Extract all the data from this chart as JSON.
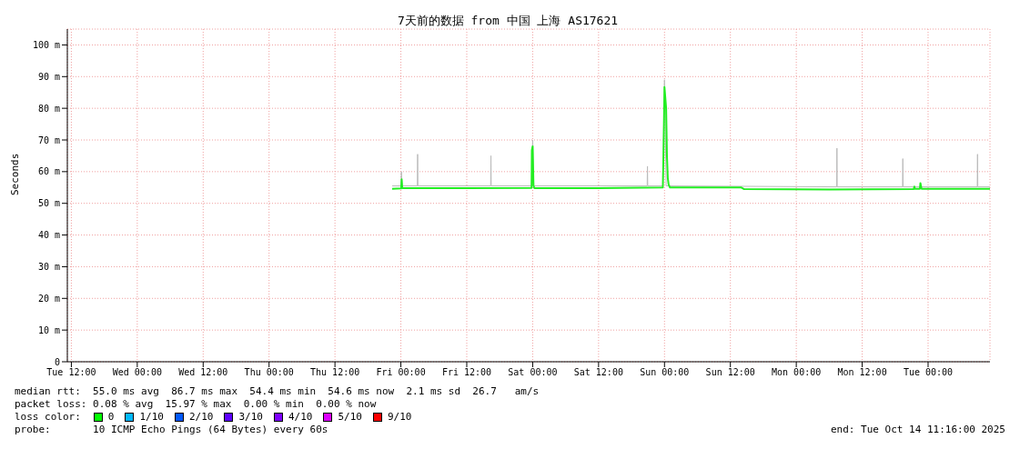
{
  "chart_data": {
    "type": "line",
    "title": "7天前的数据 from 中国 上海 AS17621",
    "ylabel": "Seconds",
    "xlim": [
      "2025-10-07T11:16",
      "2025-10-14T11:16"
    ],
    "xticks": [
      {
        "value": "2025-10-07T12:00",
        "label": "Tue 12:00"
      },
      {
        "value": "2025-10-08T00:00",
        "label": "Wed 00:00"
      },
      {
        "value": "2025-10-08T12:00",
        "label": "Wed 12:00"
      },
      {
        "value": "2025-10-09T00:00",
        "label": "Thu 00:00"
      },
      {
        "value": "2025-10-09T12:00",
        "label": "Thu 12:00"
      },
      {
        "value": "2025-10-10T00:00",
        "label": "Fri 00:00"
      },
      {
        "value": "2025-10-10T12:00",
        "label": "Fri 12:00"
      },
      {
        "value": "2025-10-11T00:00",
        "label": "Sat 00:00"
      },
      {
        "value": "2025-10-11T12:00",
        "label": "Sat 12:00"
      },
      {
        "value": "2025-10-12T00:00",
        "label": "Sun 00:00"
      },
      {
        "value": "2025-10-12T12:00",
        "label": "Sun 12:00"
      },
      {
        "value": "2025-10-13T00:00",
        "label": "Mon 00:00"
      },
      {
        "value": "2025-10-13T12:00",
        "label": "Mon 12:00"
      },
      {
        "value": "2025-10-14T00:00",
        "label": "Tue 00:00"
      }
    ],
    "ylim": [
      0,
      105
    ],
    "yticks": [
      0,
      {
        "value": 10,
        "label": "10 m"
      },
      {
        "value": 20,
        "label": "20 m"
      },
      {
        "value": 30,
        "label": "30 m"
      },
      {
        "value": 40,
        "label": "40 m"
      },
      {
        "value": 50,
        "label": "50 m"
      },
      {
        "value": 60,
        "label": "60 m"
      },
      {
        "value": 70,
        "label": "70 m"
      },
      {
        "value": 80,
        "label": "80 m"
      },
      {
        "value": 90,
        "label": "90 m"
      },
      {
        "value": 100,
        "label": "100 m"
      }
    ],
    "grid": true,
    "marker": "none",
    "line_style": "solid",
    "series": [
      {
        "color": "#bbbbbb",
        "x": [
          "2025-10-09T22:24",
          "2025-10-10T00:00",
          "2025-10-10T00:06",
          "2025-10-10T00:12",
          "2025-10-10T03:00",
          "2025-10-10T03:03",
          "2025-10-10T03:06",
          "2025-10-10T16:21",
          "2025-10-10T16:24",
          "2025-10-10T16:27",
          "2025-10-10T23:48",
          "2025-10-11T00:00",
          "2025-10-11T00:12",
          "2025-10-11T20:51",
          "2025-10-11T20:54",
          "2025-10-11T20:57",
          "2025-10-11T23:42",
          "2025-10-12T00:00",
          "2025-10-12T00:18",
          "2025-10-12T01:00",
          "2025-10-13T07:21",
          "2025-10-13T07:24",
          "2025-10-13T07:27",
          "2025-10-13T19:21",
          "2025-10-13T19:24",
          "2025-10-13T19:27",
          "2025-10-14T08:57",
          "2025-10-14T09:00",
          "2025-10-14T09:03",
          "2025-10-14T11:16"
        ],
        "values": [
          55.5,
          55.5,
          60,
          55.5,
          55.5,
          65.5,
          55.5,
          55.5,
          65,
          55.5,
          55.5,
          70,
          55.5,
          55.5,
          61.7,
          55.5,
          55.5,
          89,
          55.5,
          55.5,
          55.2,
          67.4,
          55.2,
          55.2,
          64.1,
          55.2,
          55.2,
          65.5,
          55.2,
          55.2
        ]
      },
      {
        "color": "#22ee22",
        "x": [
          "2025-10-09T22:24",
          "2025-10-10T00:03",
          "2025-10-10T00:09",
          "2025-10-10T00:15",
          "2025-10-10T12:00",
          "2025-10-10T23:48",
          "2025-10-10T23:51",
          "2025-10-11T00:00",
          "2025-10-11T00:09",
          "2025-10-11T00:18",
          "2025-10-11T12:00",
          "2025-10-11T23:42",
          "2025-10-11T23:51",
          "2025-10-12T00:00",
          "2025-10-12T00:18",
          "2025-10-12T00:27",
          "2025-10-12T00:36",
          "2025-10-12T00:45",
          "2025-10-12T01:00",
          "2025-10-12T14:00",
          "2025-10-12T14:30",
          "2025-10-13T06:00",
          "2025-10-13T21:24",
          "2025-10-13T21:30",
          "2025-10-13T21:36",
          "2025-10-13T22:30",
          "2025-10-13T22:36",
          "2025-10-13T22:48",
          "2025-10-14T11:16"
        ],
        "values": [
          54.6,
          54.7,
          57.6,
          54.8,
          54.8,
          54.9,
          66.8,
          68.0,
          55.6,
          54.8,
          54.8,
          55.0,
          69,
          86.7,
          80,
          65,
          58,
          56,
          55.0,
          55.0,
          54.5,
          54.4,
          54.5,
          55.3,
          54.6,
          54.6,
          56.4,
          54.6,
          54.6
        ]
      }
    ],
    "annotations": [
      "median rtt:  55.0 ms avg  86.7 ms max  54.4 ms min  54.6 ms now  2.1 ms sd  26.7   am/s",
      "packet loss: 0.08 % avg  15.97 % max  0.00 % min  0.00 % now",
      "loss color:",
      "0",
      "1/10",
      "2/10",
      "3/10",
      "4/10",
      "5/10",
      "9/10",
      "probe:       10 ICMP Echo Pings (64 Bytes) every 60s",
      "end: Tue Oct 14 11:16:00 2025"
    ]
  }
}
